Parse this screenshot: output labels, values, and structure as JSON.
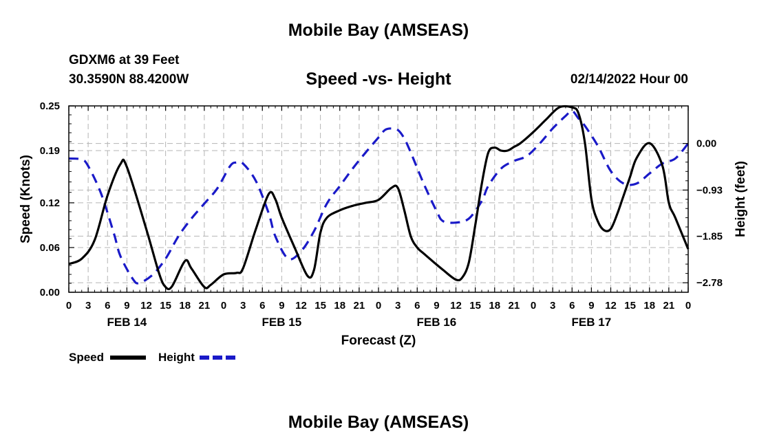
{
  "header": {
    "title": "Mobile Bay (AMSEAS)",
    "station_line1": "GDXM6 at 39 Feet",
    "station_line2": "30.3590N  88.4200W",
    "chart_title": "Speed -vs- Height",
    "run_time": "02/14/2022 Hour 00"
  },
  "footer": {
    "title": "Mobile Bay (AMSEAS)"
  },
  "colors": {
    "speed": "#000000",
    "height": "#1a1ac8",
    "grid": "#b4b4b4"
  },
  "chart_data": {
    "type": "line",
    "title": "Speed -vs- Height",
    "xlabel": "Forecast (Z)",
    "ylabel": "Speed (Knots)",
    "ylabel_right": "Height (feet)",
    "x_range_hours": [
      0,
      96
    ],
    "x_tick_step_hours": 3,
    "x_tick_labels": [
      "0",
      "3",
      "6",
      "9",
      "12",
      "15",
      "18",
      "21",
      "0",
      "3",
      "6",
      "9",
      "12",
      "15",
      "18",
      "21",
      "0",
      "3",
      "6",
      "9",
      "12",
      "15",
      "18",
      "21",
      "0",
      "3",
      "6",
      "9",
      "12",
      "15",
      "18",
      "21",
      "0"
    ],
    "date_labels": [
      {
        "label": "FEB 14",
        "hour": 9
      },
      {
        "label": "FEB 15",
        "hour": 33
      },
      {
        "label": "FEB 16",
        "hour": 57
      },
      {
        "label": "FEB 17",
        "hour": 81
      }
    ],
    "y_left": {
      "range": [
        0,
        0.25
      ],
      "ticks": [
        0.0,
        0.06,
        0.12,
        0.19,
        0.25
      ],
      "tick_labels": [
        "0.00",
        "0.06",
        "0.12",
        "0.19",
        "0.25"
      ]
    },
    "y_right": {
      "range": [
        -2.97,
        0.75
      ],
      "ticks": [
        -2.78,
        -1.85,
        -0.93,
        0.0
      ],
      "tick_labels": [
        "−2.78",
        "−1.85",
        "−0.93",
        "0.00"
      ]
    },
    "grid": true,
    "series": [
      {
        "name": "Speed",
        "axis": "left",
        "style": "solid",
        "x": [
          0,
          2,
          4,
          6,
          8,
          9,
          12,
          14,
          15,
          16,
          18,
          19,
          21,
          22,
          24,
          26,
          27,
          29,
          31,
          32,
          33,
          35,
          37,
          38,
          39,
          40,
          42,
          44,
          46,
          48,
          50,
          51,
          52,
          53,
          54,
          55,
          58,
          60,
          61,
          62,
          63,
          64,
          65,
          66,
          67,
          68,
          69,
          70,
          72,
          74,
          76,
          78,
          79,
          80,
          81,
          82,
          83,
          84,
          85,
          86,
          87,
          88,
          90,
          92,
          93,
          94,
          96
        ],
        "values": [
          0.038,
          0.045,
          0.07,
          0.13,
          0.172,
          0.168,
          0.085,
          0.025,
          0.007,
          0.008,
          0.042,
          0.032,
          0.007,
          0.01,
          0.024,
          0.026,
          0.032,
          0.085,
          0.132,
          0.125,
          0.1,
          0.06,
          0.022,
          0.03,
          0.08,
          0.1,
          0.11,
          0.116,
          0.12,
          0.124,
          0.14,
          0.14,
          0.11,
          0.075,
          0.06,
          0.052,
          0.03,
          0.017,
          0.02,
          0.04,
          0.09,
          0.145,
          0.187,
          0.194,
          0.19,
          0.19,
          0.195,
          0.2,
          0.215,
          0.232,
          0.248,
          0.248,
          0.24,
          0.2,
          0.125,
          0.095,
          0.083,
          0.085,
          0.105,
          0.13,
          0.155,
          0.18,
          0.2,
          0.17,
          0.12,
          0.1,
          0.058
        ]
      },
      {
        "name": "Height",
        "axis": "right",
        "style": "dashed",
        "x": [
          0,
          2,
          3,
          5,
          7,
          8,
          10,
          11,
          13,
          15,
          17,
          19,
          21,
          23,
          25,
          26,
          27,
          29,
          31,
          32,
          34,
          36,
          38,
          40,
          42,
          44,
          46,
          48,
          49,
          50,
          51,
          52,
          53,
          55,
          57,
          58,
          60,
          62,
          64,
          65,
          67,
          69,
          71,
          73,
          75,
          77,
          78,
          79,
          80,
          82,
          84,
          86,
          88,
          90,
          92,
          94,
          96
        ],
        "values": [
          -0.3,
          -0.32,
          -0.45,
          -1.0,
          -1.8,
          -2.25,
          -2.72,
          -2.78,
          -2.62,
          -2.3,
          -1.85,
          -1.5,
          -1.2,
          -0.9,
          -0.45,
          -0.38,
          -0.4,
          -0.75,
          -1.4,
          -1.85,
          -2.3,
          -2.15,
          -1.75,
          -1.2,
          -0.85,
          -0.5,
          -0.18,
          0.12,
          0.27,
          0.3,
          0.27,
          0.1,
          -0.18,
          -0.8,
          -1.35,
          -1.55,
          -1.58,
          -1.5,
          -1.15,
          -0.85,
          -0.5,
          -0.35,
          -0.25,
          0.0,
          0.3,
          0.55,
          0.65,
          0.5,
          0.35,
          -0.05,
          -0.55,
          -0.8,
          -0.8,
          -0.6,
          -0.4,
          -0.3,
          0.0
        ]
      }
    ],
    "legend": [
      {
        "label": "Speed",
        "style": "solid"
      },
      {
        "label": "Height",
        "style": "dashed"
      }
    ],
    "legend_position": "bottom-left"
  }
}
